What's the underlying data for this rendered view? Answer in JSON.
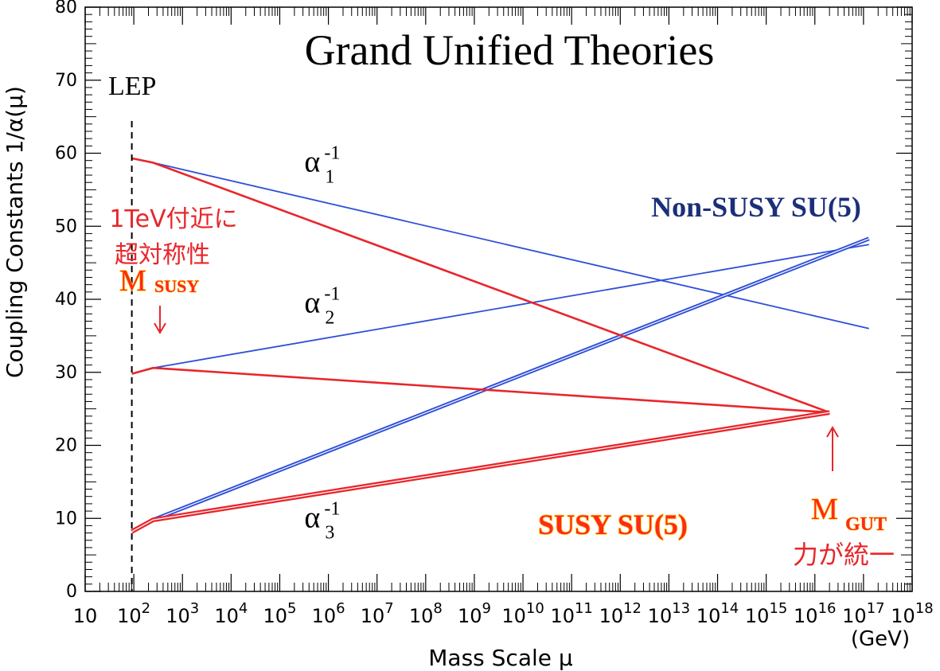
{
  "colors": {
    "axis": "#000000",
    "non_susy": "#2f4fd8",
    "susy": "#e8262b",
    "non_susy_label": "#1b2f7a",
    "susy_label_fill": "#ff2a1a",
    "susy_label_outline": "#ffd21f",
    "annotation": "#e8262b"
  },
  "chart_data": {
    "type": "line",
    "title": "Grand Unified Theories",
    "ylabel": "Coupling Constants  1/α(μ)",
    "xlabel": "Mass Scale μ",
    "x_unit": "(GeV)",
    "xscale": "log",
    "xlim": [
      10,
      1e+18
    ],
    "ylim": [
      0,
      80
    ],
    "y_ticks": [
      {
        "value": 0,
        "label": "0"
      },
      {
        "value": 10,
        "label": "10"
      },
      {
        "value": 20,
        "label": "20"
      },
      {
        "value": 30,
        "label": "30"
      },
      {
        "value": 40,
        "label": "40"
      },
      {
        "value": 50,
        "label": "50"
      },
      {
        "value": 60,
        "label": "60"
      },
      {
        "value": 70,
        "label": "70"
      },
      {
        "value": 80,
        "label": "80"
      }
    ],
    "x_ticks": [
      {
        "value": 10,
        "base": "10",
        "exp": ""
      },
      {
        "value": 100.0,
        "base": "10",
        "exp": "2"
      },
      {
        "value": 1000.0,
        "base": "10",
        "exp": "3"
      },
      {
        "value": 10000.0,
        "base": "10",
        "exp": "4"
      },
      {
        "value": 100000.0,
        "base": "10",
        "exp": "5"
      },
      {
        "value": 1000000.0,
        "base": "10",
        "exp": "6"
      },
      {
        "value": 10000000.0,
        "base": "10",
        "exp": "7"
      },
      {
        "value": 100000000.0,
        "base": "10",
        "exp": "8"
      },
      {
        "value": 1000000000.0,
        "base": "10",
        "exp": "9"
      },
      {
        "value": 10000000000.0,
        "base": "10",
        "exp": "10"
      },
      {
        "value": 100000000000.0,
        "base": "10",
        "exp": "11"
      },
      {
        "value": 1000000000000.0,
        "base": "10",
        "exp": "12"
      },
      {
        "value": 10000000000000.0,
        "base": "10",
        "exp": "13"
      },
      {
        "value": 100000000000000.0,
        "base": "10",
        "exp": "14"
      },
      {
        "value": 1000000000000000.0,
        "base": "10",
        "exp": "15"
      },
      {
        "value": 1e+16,
        "base": "10",
        "exp": "16"
      },
      {
        "value": 1e+17,
        "base": "10",
        "exp": "17"
      },
      {
        "value": 1e+18,
        "base": "10",
        "exp": "18"
      }
    ],
    "lep_line": {
      "x": 91,
      "label": "LEP"
    },
    "series": [
      {
        "group": "non_susy",
        "curve_label": "α1⁻¹",
        "double": false,
        "points": [
          [
            91,
            59.3
          ],
          [
            250,
            58.7
          ],
          [
            1.3e+17,
            36.0
          ]
        ]
      },
      {
        "group": "non_susy",
        "curve_label": "α2⁻¹",
        "double": false,
        "points": [
          [
            91,
            29.8
          ],
          [
            250,
            30.6
          ],
          [
            1.3e+17,
            47.5
          ]
        ]
      },
      {
        "group": "non_susy",
        "curve_label": "α3⁻¹",
        "double": true,
        "points": [
          [
            91,
            8.2
          ],
          [
            250,
            9.8
          ],
          [
            1.3e+17,
            48.3
          ]
        ]
      },
      {
        "group": "susy",
        "curve_label": "α1⁻¹",
        "double": false,
        "points": [
          [
            91,
            59.3
          ],
          [
            250,
            58.7
          ],
          [
            2e+16,
            24.5
          ]
        ]
      },
      {
        "group": "susy",
        "curve_label": "α2⁻¹",
        "double": false,
        "points": [
          [
            91,
            29.8
          ],
          [
            250,
            30.6
          ],
          [
            2e+16,
            24.5
          ]
        ]
      },
      {
        "group": "susy",
        "curve_label": "α3⁻¹",
        "double": true,
        "points": [
          [
            91,
            8.2
          ],
          [
            250,
            9.8
          ],
          [
            2e+16,
            24.5
          ]
        ]
      }
    ],
    "curve_labels": [
      {
        "base": "α",
        "sup": "-1",
        "sub": "1",
        "x": 320000.0,
        "y": 57.5
      },
      {
        "base": "α",
        "sup": "-1",
        "sub": "2",
        "x": 320000.0,
        "y": 38.2
      },
      {
        "base": "α",
        "sup": "-1",
        "sub": "3",
        "x": 320000.0,
        "y": 8.8
      }
    ],
    "annotations": {
      "non_susy": "Non-SUSY SU(5)",
      "susy": "SUSY SU(5)",
      "m_susy_line1": "1TeV付近に",
      "m_susy_line2": "超対称性",
      "m_susy_M": "M",
      "m_susy_sub": "SUSY",
      "m_gut_M": "M",
      "m_gut_sub": "GUT",
      "m_gut_caption": "力が統一"
    }
  }
}
